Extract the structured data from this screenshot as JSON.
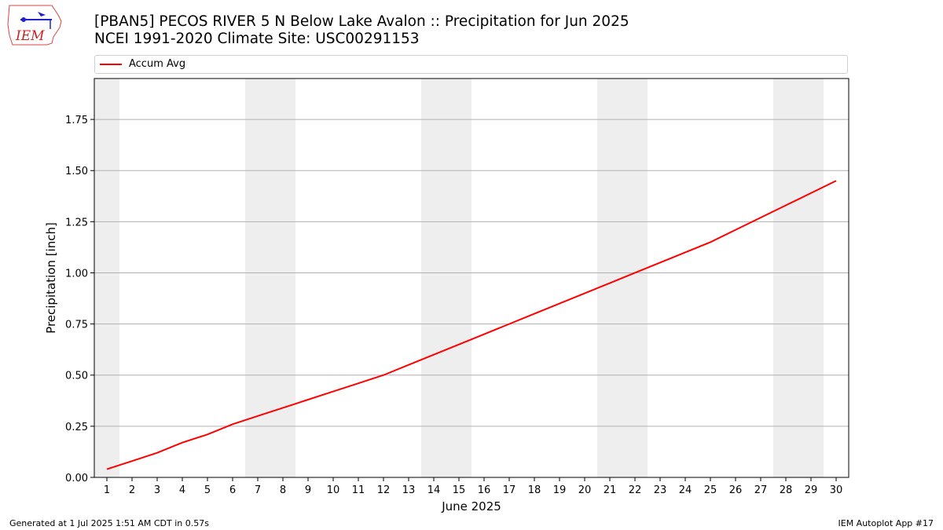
{
  "header": {
    "title_line1": "[PBAN5] PECOS RIVER 5 N Below Lake Avalon :: Precipitation for Jun 2025",
    "title_line2": "NCEI 1991-2020 Climate Site: USC00291153",
    "logo_text": "IEM"
  },
  "footer": {
    "generated": "Generated at 1 Jul 2025 1:51 AM CDT in 0.57s",
    "app": "IEM Autoplot App #17"
  },
  "chart_data": {
    "type": "line",
    "title": "[PBAN5] PECOS RIVER 5 N Below Lake Avalon :: Precipitation for Jun 2025",
    "subtitle": "NCEI 1991-2020 Climate Site: USC00291153",
    "xlabel": "June 2025",
    "ylabel": "Precipitation [inch]",
    "x": [
      1,
      2,
      3,
      4,
      5,
      6,
      7,
      8,
      9,
      10,
      11,
      12,
      13,
      14,
      15,
      16,
      17,
      18,
      19,
      20,
      21,
      22,
      23,
      24,
      25,
      26,
      27,
      28,
      29,
      30
    ],
    "series": [
      {
        "name": "Accum Avg",
        "color": "#ff0000",
        "values": [
          0.04,
          0.08,
          0.12,
          0.17,
          0.21,
          0.26,
          0.3,
          0.34,
          0.38,
          0.42,
          0.46,
          0.5,
          0.55,
          0.6,
          0.65,
          0.7,
          0.75,
          0.8,
          0.85,
          0.9,
          0.95,
          1.0,
          1.05,
          1.1,
          1.15,
          1.21,
          1.27,
          1.33,
          1.39,
          1.45
        ]
      }
    ],
    "xlim": [
      0.5,
      30.5
    ],
    "ylim": [
      0,
      1.95
    ],
    "yticks": [
      0.0,
      0.25,
      0.5,
      0.75,
      1.0,
      1.25,
      1.5,
      1.75
    ],
    "ytick_labels": [
      "0.00",
      "0.25",
      "0.50",
      "0.75",
      "1.00",
      "1.25",
      "1.50",
      "1.75"
    ],
    "xtick_labels": [
      "1",
      "2",
      "3",
      "4",
      "5",
      "6",
      "7",
      "8",
      "9",
      "10",
      "11",
      "12",
      "13",
      "14",
      "15",
      "16",
      "17",
      "18",
      "19",
      "20",
      "21",
      "22",
      "23",
      "24",
      "25",
      "26",
      "27",
      "28",
      "29",
      "30"
    ],
    "weekend_bands": [
      [
        0.5,
        1.5
      ],
      [
        6.5,
        8.5
      ],
      [
        13.5,
        15.5
      ],
      [
        20.5,
        22.5
      ],
      [
        27.5,
        29.5
      ]
    ],
    "band_color": "#eeeeee",
    "grid": "y",
    "legend_position": "top"
  }
}
